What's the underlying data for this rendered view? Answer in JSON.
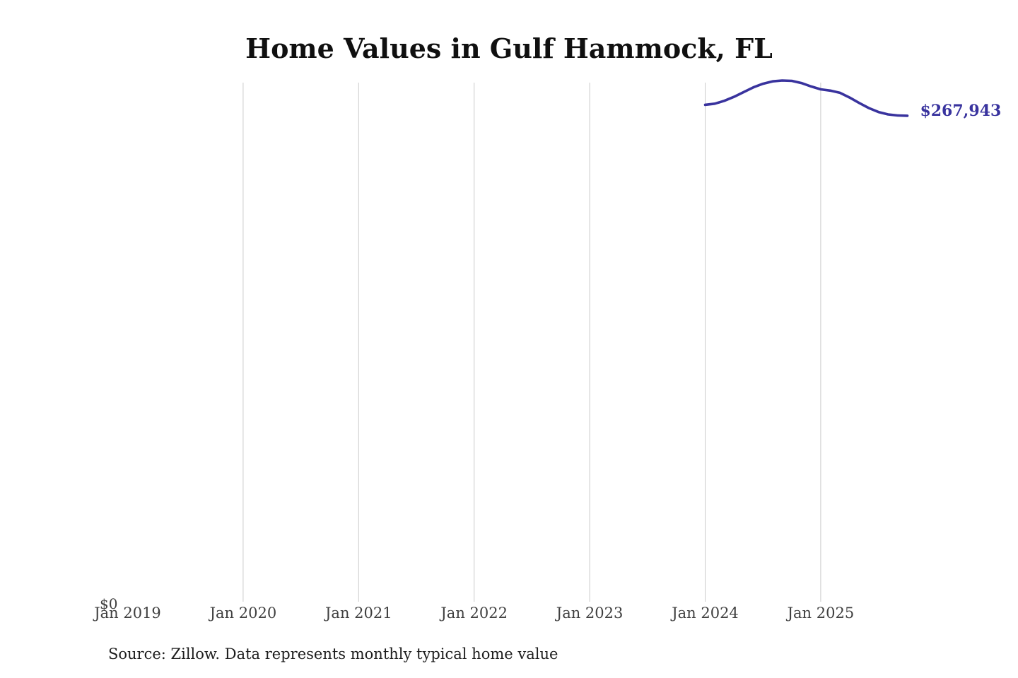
{
  "page": {
    "title": "Home Values in Gulf Hammock, FL",
    "source_note": "Source: Zillow. Data represents monthly typical home value"
  },
  "colors": {
    "background": "#ffffff",
    "line": "#39339e",
    "value_label": "#39339e",
    "gridline": "#cbcbcb",
    "axis_text": "#3f3f3f",
    "source_text": "#1d1d1d",
    "title_text": "#101010"
  },
  "chart_data": {
    "type": "line",
    "title": "Home Values in Gulf Hammock, FL",
    "xlabel": "",
    "ylabel": "",
    "grid": "vertical-yearly",
    "legend_position": "none",
    "latest_value_label": "$267,943",
    "y_axis": {
      "zero_label": "$0",
      "min": 0
    },
    "x_ticks": [
      {
        "label": "Jan 2019",
        "gridline": false
      },
      {
        "label": "Jan 2020",
        "gridline": true
      },
      {
        "label": "Jan 2021",
        "gridline": true
      },
      {
        "label": "Jan 2022",
        "gridline": true
      },
      {
        "label": "Jan 2023",
        "gridline": true
      },
      {
        "label": "Jan 2024",
        "gridline": true
      },
      {
        "label": "Jan 2025",
        "gridline": true
      }
    ],
    "series": [
      {
        "name": "Monthly typical home value",
        "points": [
          {
            "date": "2024-01",
            "value": 274000
          },
          {
            "date": "2024-02",
            "value": 274600
          },
          {
            "date": "2024-03",
            "value": 276200
          },
          {
            "date": "2024-04",
            "value": 278400
          },
          {
            "date": "2024-05",
            "value": 281000
          },
          {
            "date": "2024-06",
            "value": 283600
          },
          {
            "date": "2024-07",
            "value": 285600
          },
          {
            "date": "2024-08",
            "value": 286900
          },
          {
            "date": "2024-09",
            "value": 287400
          },
          {
            "date": "2024-10",
            "value": 287200
          },
          {
            "date": "2024-11",
            "value": 286000
          },
          {
            "date": "2024-12",
            "value": 284100
          },
          {
            "date": "2025-01",
            "value": 282500
          },
          {
            "date": "2025-02",
            "value": 281800
          },
          {
            "date": "2025-03",
            "value": 280600
          },
          {
            "date": "2025-04",
            "value": 278000
          },
          {
            "date": "2025-05",
            "value": 275000
          },
          {
            "date": "2025-06",
            "value": 272200
          },
          {
            "date": "2025-07",
            "value": 270000
          },
          {
            "date": "2025-08",
            "value": 268700
          },
          {
            "date": "2025-09",
            "value": 268100
          },
          {
            "date": "2025-10",
            "value": 267943
          }
        ]
      }
    ]
  }
}
